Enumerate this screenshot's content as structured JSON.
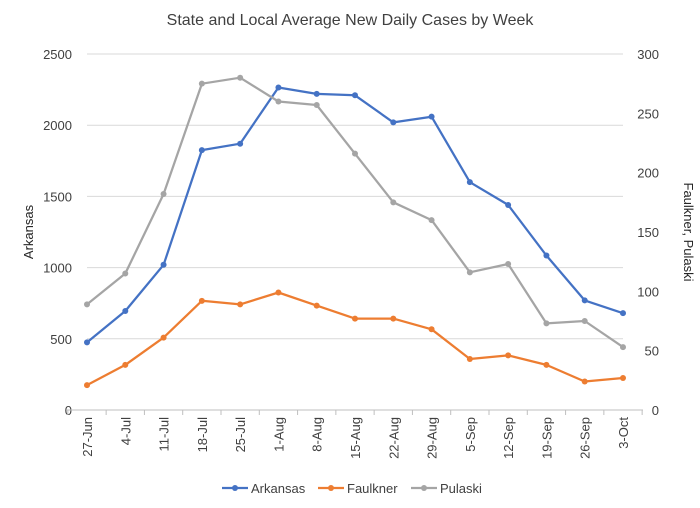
{
  "chart_data": {
    "type": "line",
    "title": "State and Local Average New Daily Cases by Week",
    "ylabel": "Arkansas",
    "y2label": "Faulkner, Pulaski",
    "xlabel": "",
    "ylim": [
      0,
      2500
    ],
    "y2lim": [
      0,
      300
    ],
    "yticks": [
      "0",
      "500",
      "1000",
      "1500",
      "2000",
      "2500"
    ],
    "y2ticks": [
      "0",
      "50",
      "100",
      "150",
      "200",
      "250",
      "300"
    ],
    "categories": [
      "27-Jun",
      "4-Jul",
      "11-Jul",
      "18-Jul",
      "25-Jul",
      "1-Aug",
      "8-Aug",
      "15-Aug",
      "22-Aug",
      "29-Aug",
      "5-Sep",
      "12-Sep",
      "19-Sep",
      "26-Sep",
      "3-Oct"
    ],
    "grid": true,
    "legend_position": "bottom",
    "series": [
      {
        "name": "Arkansas",
        "axis": "left",
        "color": "#4472C4",
        "values": [
          475,
          695,
          1020,
          1825,
          1870,
          2265,
          2220,
          2210,
          2020,
          2060,
          1600,
          1440,
          1085,
          770,
          680
        ]
      },
      {
        "name": "Faulkner",
        "axis": "right",
        "color": "#ED7D31",
        "values": [
          21,
          38,
          61,
          92,
          89,
          99,
          88,
          77,
          77,
          68,
          43,
          46,
          38,
          24,
          27
        ]
      },
      {
        "name": "Pulaski",
        "axis": "right",
        "color": "#A5A5A5",
        "values": [
          89,
          115,
          182,
          275,
          280,
          260,
          257,
          216,
          175,
          160,
          116,
          123,
          73,
          75,
          53
        ]
      }
    ]
  }
}
